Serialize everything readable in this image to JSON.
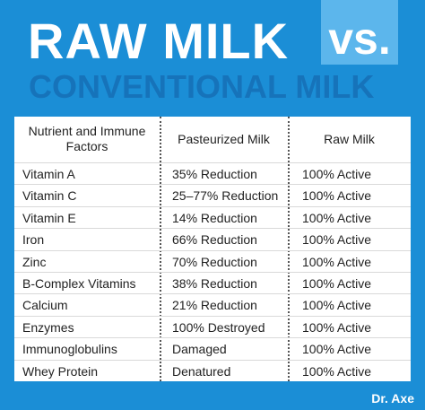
{
  "header": {
    "title": "RAW MILK",
    "vs": "vs.",
    "subtitle": "CONVENTIONAL MILK"
  },
  "table": {
    "columns": [
      "Nutrient and Immune Factors",
      "Pasteurized Milk",
      "Raw Milk"
    ],
    "rows": [
      [
        "Vitamin A",
        "35% Reduction",
        "100% Active"
      ],
      [
        "Vitamin C",
        "25–77% Reduction",
        "100% Active"
      ],
      [
        "Vitamin E",
        "14% Reduction",
        "100% Active"
      ],
      [
        "Iron",
        "66% Reduction",
        "100% Active"
      ],
      [
        "Zinc",
        "70% Reduction",
        "100% Active"
      ],
      [
        "B-Complex Vitamins",
        "38% Reduction",
        "100% Active"
      ],
      [
        "Calcium",
        "21% Reduction",
        "100% Active"
      ],
      [
        "Enzymes",
        "100% Destroyed",
        "100% Active"
      ],
      [
        "Immunoglobulins",
        "Damaged",
        "100% Active"
      ],
      [
        "Whey Protein",
        "Denatured",
        "100% Active"
      ]
    ]
  },
  "footer": {
    "brand": "Dr. Axe"
  }
}
